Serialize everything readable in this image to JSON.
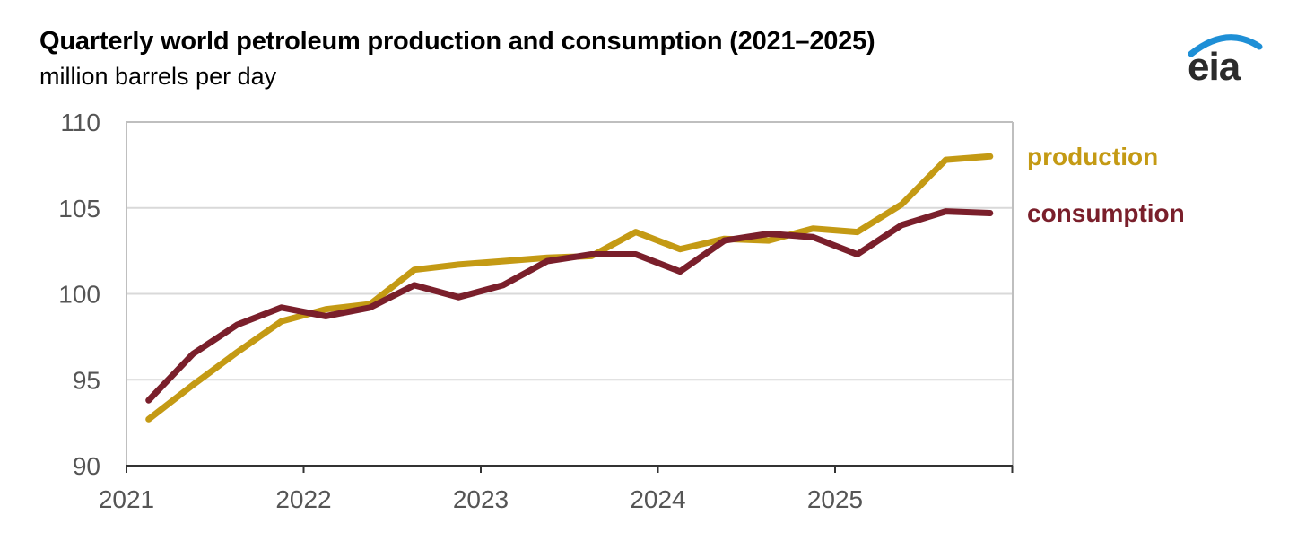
{
  "chart_data": {
    "type": "line",
    "title": "Quarterly world petroleum production and consumption (2021–2025)",
    "subtitle": "million barrels per day",
    "ylim": [
      90,
      110
    ],
    "y_ticks": [
      90,
      95,
      100,
      105,
      110
    ],
    "x_ticks": [
      "2021",
      "2022",
      "2023",
      "2024",
      "2025"
    ],
    "x": [
      "2021Q1",
      "2021Q2",
      "2021Q3",
      "2021Q4",
      "2022Q1",
      "2022Q2",
      "2022Q3",
      "2022Q4",
      "2023Q1",
      "2023Q2",
      "2023Q3",
      "2023Q4",
      "2024Q1",
      "2024Q2",
      "2024Q3",
      "2024Q4",
      "2025Q1",
      "2025Q2",
      "2025Q3",
      "2025Q4"
    ],
    "grid": true,
    "series": [
      {
        "name": "production",
        "color": "#C49A14",
        "values": [
          92.7,
          94.7,
          96.6,
          98.4,
          99.1,
          99.4,
          101.4,
          101.7,
          101.9,
          102.1,
          102.2,
          103.6,
          102.6,
          103.2,
          103.1,
          103.8,
          103.6,
          105.2,
          107.8,
          108.0
        ]
      },
      {
        "name": "consumption",
        "color": "#7A1F2B",
        "values": [
          93.8,
          96.5,
          98.2,
          99.2,
          98.7,
          99.2,
          100.5,
          99.8,
          100.5,
          101.9,
          102.3,
          102.3,
          101.3,
          103.1,
          103.5,
          103.3,
          102.3,
          104.0,
          104.8,
          104.7
        ]
      }
    ]
  },
  "logo": {
    "text": "eia",
    "arc_color": "#1E8FD6"
  }
}
